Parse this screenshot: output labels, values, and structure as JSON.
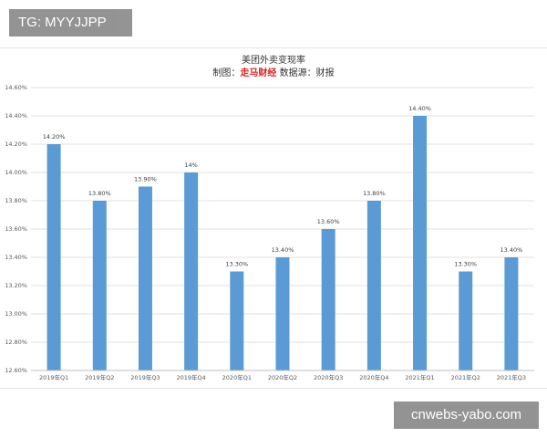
{
  "watermarks": {
    "top_left": "TG: MYYJJPP",
    "bottom_right": "cnwebs-yabo.com"
  },
  "colors": {
    "bar": "#5b9bd5",
    "source_highlight": "#e02020",
    "gridline": "#d9d9d9"
  },
  "chart_data": {
    "type": "bar",
    "title": "美团外卖变现率",
    "subtitle": {
      "prefix": "制图：",
      "source": "走马财经",
      "suffix": " 数据源：财报"
    },
    "categories": [
      "2019年Q1",
      "2019年Q2",
      "2019年Q3",
      "2019年Q4",
      "2020年Q1",
      "2020年Q2",
      "2020年Q3",
      "2020年Q4",
      "2021年Q1",
      "2021年Q2",
      "2021年Q3"
    ],
    "values": [
      14.2,
      13.8,
      13.9,
      14.0,
      13.3,
      13.4,
      13.6,
      13.8,
      14.4,
      13.3,
      13.4
    ],
    "data_labels": [
      "14.20%",
      "13.80%",
      "13.90%",
      "14%",
      "13.30%",
      "13.40%",
      "13.60%",
      "13.80%",
      "14.40%",
      "13.30%",
      "13.40%"
    ],
    "y_ticks": [
      12.6,
      12.8,
      13.0,
      13.2,
      13.4,
      13.6,
      13.8,
      14.0,
      14.2,
      14.4,
      14.6
    ],
    "y_tick_labels": [
      "12.60%",
      "12.80%",
      "13.00%",
      "13.20%",
      "13.40%",
      "13.60%",
      "13.80%",
      "14.00%",
      "14.20%",
      "14.40%",
      "14.60%"
    ],
    "ylim": [
      12.6,
      14.6
    ],
    "xlabel": "",
    "ylabel": "",
    "grid": true,
    "legend": "none"
  }
}
